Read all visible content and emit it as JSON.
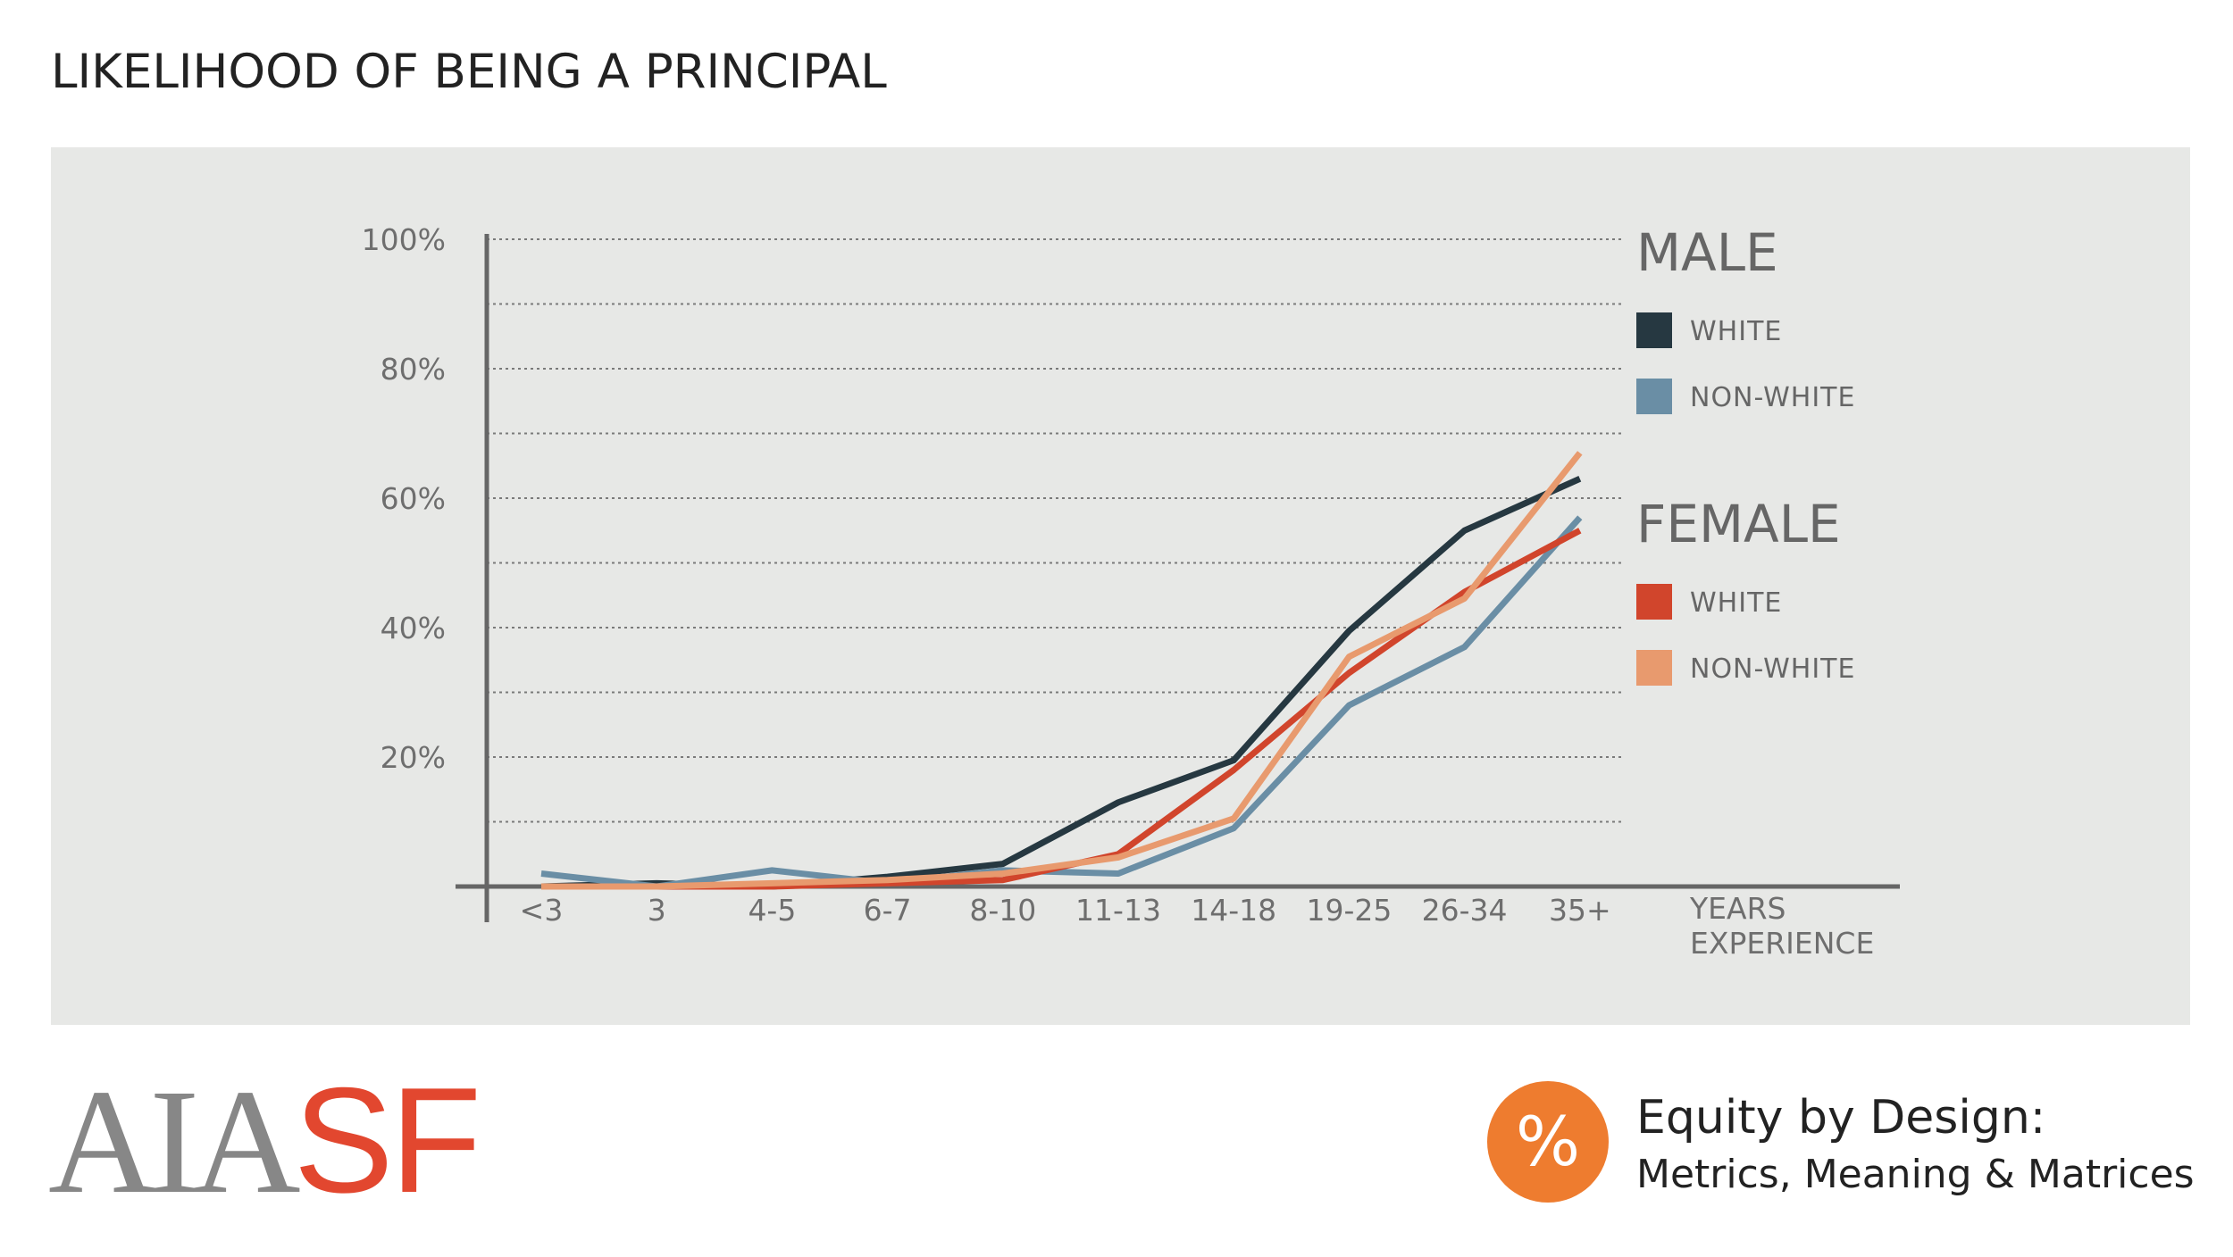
{
  "page": {
    "title": "LIKELIHOOD OF BEING A PRINCIPAL"
  },
  "footer": {
    "logo_part1": "AIA",
    "logo_part2": "SF",
    "badge_symbol": "%",
    "tagline_line1": "Equity by Design:",
    "tagline_line2": "Metrics, Meaning & Matrices"
  },
  "colors": {
    "male_white": "#263841",
    "male_nonwhite": "#6a8ea5",
    "female_white": "#d1452c",
    "female_nonwhite": "#e89a6e",
    "logo_red": "#e2472f",
    "badge_orange": "#ee7c2f"
  },
  "chart_data": {
    "type": "line",
    "title": "LIKELIHOOD OF BEING A PRINCIPAL",
    "xlabel": "YEARS EXPERIENCE",
    "ylabel": "",
    "categories": [
      "<3",
      "3",
      "4-5",
      "6-7",
      "8-10",
      "11-13",
      "14-18",
      "19-25",
      "26-34",
      "35+"
    ],
    "ylim": [
      0,
      100
    ],
    "yticks": [
      20,
      40,
      60,
      80,
      100
    ],
    "ytick_labels": [
      "20%",
      "40%",
      "60%",
      "80%",
      "100%"
    ],
    "grid": "dotted horizontal every 10%",
    "legend_position": "right",
    "legend": [
      {
        "group": "MALE",
        "items": [
          "WHITE",
          "NON-WHITE"
        ]
      },
      {
        "group": "FEMALE",
        "items": [
          "WHITE",
          "NON-WHITE"
        ]
      }
    ],
    "series": [
      {
        "group": "MALE",
        "name": "WHITE",
        "color": "#263841",
        "values": [
          0,
          0.5,
          0,
          1.5,
          3.5,
          13,
          19.5,
          39.5,
          55,
          63
        ]
      },
      {
        "group": "MALE",
        "name": "NON-WHITE",
        "color": "#6a8ea5",
        "values": [
          2,
          0,
          2.5,
          0.5,
          2.5,
          2,
          9,
          28,
          37,
          57
        ]
      },
      {
        "group": "FEMALE",
        "name": "WHITE",
        "color": "#d1452c",
        "values": [
          0,
          0,
          0,
          0.5,
          1,
          5,
          18,
          33,
          45.5,
          55
        ]
      },
      {
        "group": "FEMALE",
        "name": "NON-WHITE",
        "color": "#e89a6e",
        "values": [
          0,
          0,
          0.5,
          1,
          2,
          4.5,
          10.5,
          35.5,
          44.5,
          67
        ]
      }
    ]
  }
}
